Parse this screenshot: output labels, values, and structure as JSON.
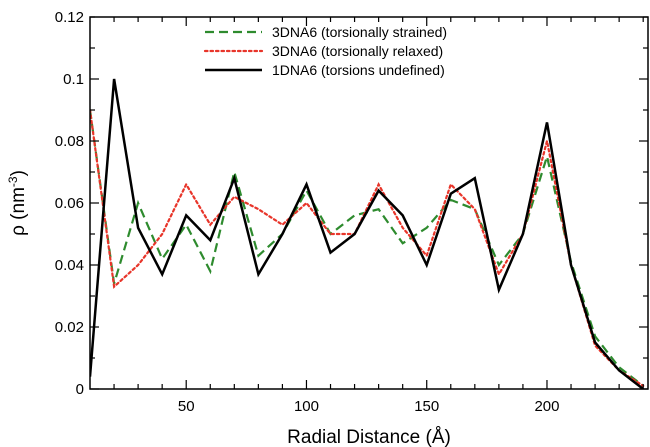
{
  "chart_data": {
    "type": "line",
    "xlabel": "Radial Distance (Å)",
    "ylabel_base": "ρ (nm",
    "ylabel_sup": "-3",
    "ylabel_close": ")",
    "xlim": [
      10,
      242
    ],
    "ylim": [
      0,
      0.12
    ],
    "xticks": [
      50,
      100,
      150,
      200
    ],
    "yticks": [
      0,
      0.02,
      0.04,
      0.06,
      0.08,
      0.1,
      0.12
    ],
    "ytick_labels": [
      "0",
      "0.02",
      "0.04",
      "0.06",
      "0.08",
      "0.1",
      "0.12"
    ],
    "grid": false,
    "legend_position": "top-center",
    "series": [
      {
        "name": "3DNA6 (torsionally strained)",
        "color": "#2e8b2e",
        "dash": "dashed",
        "x": [
          10,
          20,
          30,
          40,
          50,
          60,
          70,
          80,
          90,
          100,
          110,
          120,
          130,
          140,
          150,
          160,
          170,
          180,
          190,
          200,
          210,
          220,
          230,
          240
        ],
        "y": [
          0.09,
          0.034,
          0.06,
          0.042,
          0.053,
          0.038,
          0.07,
          0.043,
          0.05,
          0.064,
          0.05,
          0.056,
          0.058,
          0.047,
          0.052,
          0.061,
          0.058,
          0.04,
          0.05,
          0.075,
          0.041,
          0.017,
          0.007,
          0.001
        ]
      },
      {
        "name": "3DNA6 (torsionally relaxed)",
        "color": "#e8352a",
        "dash": "dotted",
        "x": [
          10,
          20,
          30,
          40,
          50,
          60,
          70,
          80,
          90,
          100,
          110,
          120,
          130,
          140,
          150,
          160,
          170,
          180,
          190,
          200,
          210,
          220,
          230,
          240
        ],
        "y": [
          0.09,
          0.033,
          0.04,
          0.05,
          0.066,
          0.053,
          0.062,
          0.058,
          0.053,
          0.06,
          0.05,
          0.05,
          0.066,
          0.052,
          0.043,
          0.066,
          0.058,
          0.037,
          0.05,
          0.08,
          0.04,
          0.014,
          0.006,
          0.001
        ]
      },
      {
        "name": "1DNA6 (torsions undefined)",
        "color": "#000000",
        "dash": "solid",
        "x": [
          10,
          20,
          30,
          40,
          50,
          60,
          70,
          80,
          90,
          100,
          110,
          120,
          130,
          140,
          150,
          160,
          170,
          180,
          190,
          200,
          210,
          220,
          230,
          240
        ],
        "y": [
          0.004,
          0.1,
          0.052,
          0.037,
          0.056,
          0.048,
          0.068,
          0.037,
          0.05,
          0.066,
          0.044,
          0.05,
          0.064,
          0.056,
          0.04,
          0.063,
          0.068,
          0.032,
          0.05,
          0.086,
          0.04,
          0.015,
          0.006,
          0.0
        ]
      }
    ]
  }
}
